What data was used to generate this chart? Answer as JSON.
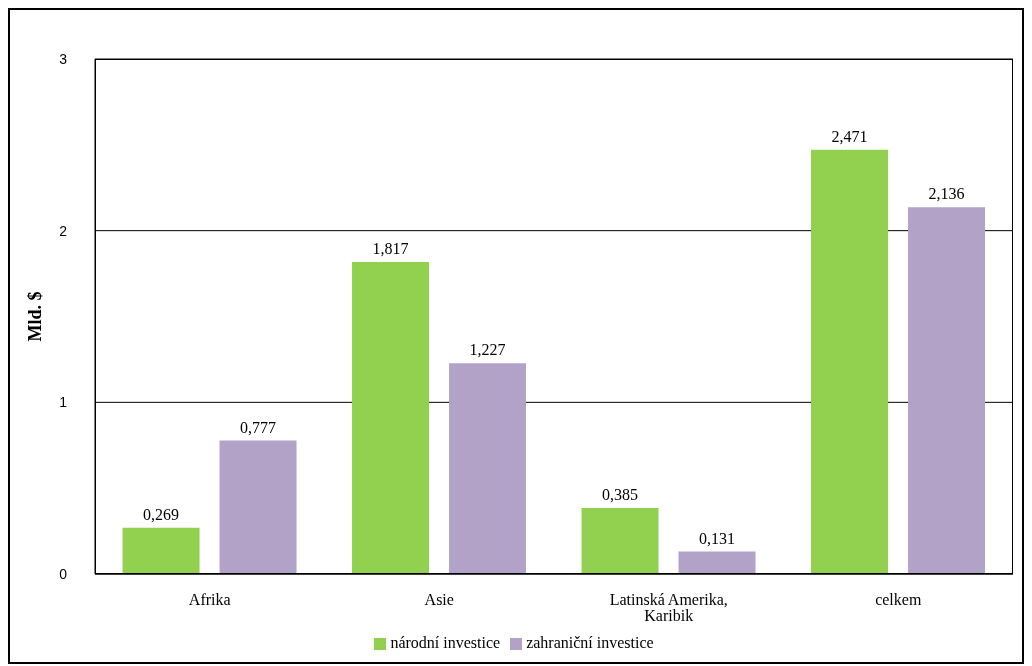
{
  "chart_data": {
    "type": "bar",
    "ylabel": "Mld. $",
    "categories": [
      "Afrika",
      "Asie",
      "Latinská Amerika, Karibik",
      "celkem"
    ],
    "series": [
      {
        "name": "národní investice",
        "color": "#92d050",
        "values": [
          0.269,
          1.817,
          0.385,
          2.471
        ],
        "value_labels": [
          "0,269",
          "1,817",
          "0,385",
          "2,471"
        ]
      },
      {
        "name": "zahraniční investice",
        "color": "#b2a2c7",
        "values": [
          0.777,
          1.227,
          0.131,
          2.136
        ],
        "value_labels": [
          "0,777",
          "1,227",
          "0,131",
          "2,136"
        ]
      }
    ],
    "ylim": [
      0,
      3
    ],
    "yticks": [
      0,
      1,
      2,
      3
    ],
    "grid": "y",
    "legend": "bottom"
  }
}
